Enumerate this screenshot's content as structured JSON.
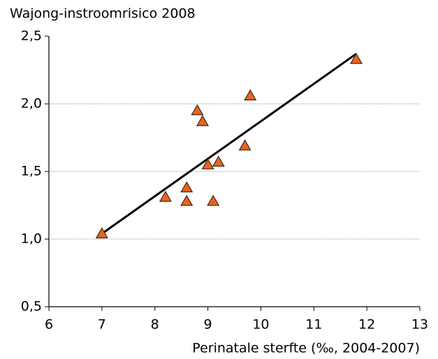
{
  "chart_data": {
    "type": "scatter",
    "title": "Wajong-instroomrisico 2008",
    "x_label": "Perinatale sterfte (‰, 2004-2007)",
    "series": [
      {
        "color": "#e8641e",
        "x": [
          7.0,
          8.2,
          8.6,
          8.6,
          8.8,
          8.9,
          9.0,
          9.1,
          9.2,
          9.7,
          9.8,
          11.8
        ],
        "values": [
          1.04,
          1.31,
          1.38,
          1.28,
          1.95,
          1.87,
          1.55,
          1.28,
          1.57,
          1.69,
          2.06,
          2.33
        ]
      }
    ],
    "trendline": {
      "x": [
        7.0,
        11.8
      ],
      "values": [
        1.04,
        2.37
      ]
    },
    "xlim": [
      6,
      13
    ],
    "xticks": [
      6,
      7,
      8,
      9,
      10,
      11,
      12,
      13
    ],
    "ylim": [
      0.5,
      2.5
    ],
    "yticks": [
      {
        "value": 0.5,
        "label": "0,5"
      },
      {
        "value": 1.0,
        "label": "1,0"
      },
      {
        "value": 1.5,
        "label": "1,5"
      },
      {
        "value": 2.0,
        "label": "2,0"
      },
      {
        "value": 2.5,
        "label": "2,5"
      }
    ],
    "grid": true
  }
}
